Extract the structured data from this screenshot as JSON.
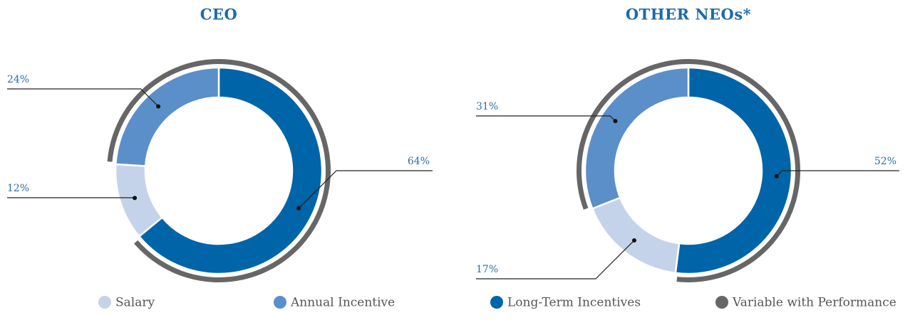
{
  "chart_data": [
    {
      "type": "pie",
      "title": "CEO",
      "categories": [
        "Salary",
        "Annual Incentive",
        "Long-Term Incentives"
      ],
      "values": [
        12,
        24,
        64
      ],
      "value_labels": [
        "12%",
        "24%",
        "64%"
      ],
      "colors": [
        "#c5d3ea",
        "#5b8fc9",
        "#0064a8"
      ]
    },
    {
      "type": "pie",
      "title": "OTHER NEOs*",
      "categories": [
        "Salary",
        "Annual Incentive",
        "Long-Term Incentives"
      ],
      "values": [
        17,
        31,
        52
      ],
      "value_labels": [
        "17%",
        "31%",
        "52%"
      ],
      "colors": [
        "#c5d3ea",
        "#5b8fc9",
        "#0064a8"
      ]
    }
  ],
  "legend": [
    {
      "name": "Salary",
      "color": "#c5d3ea"
    },
    {
      "name": "Annual Incentive",
      "color": "#5b8fc9"
    },
    {
      "name": "Long-Term Incentives",
      "color": "#0064a8"
    },
    {
      "name": "Variable with Performance",
      "color": "#666666"
    }
  ]
}
